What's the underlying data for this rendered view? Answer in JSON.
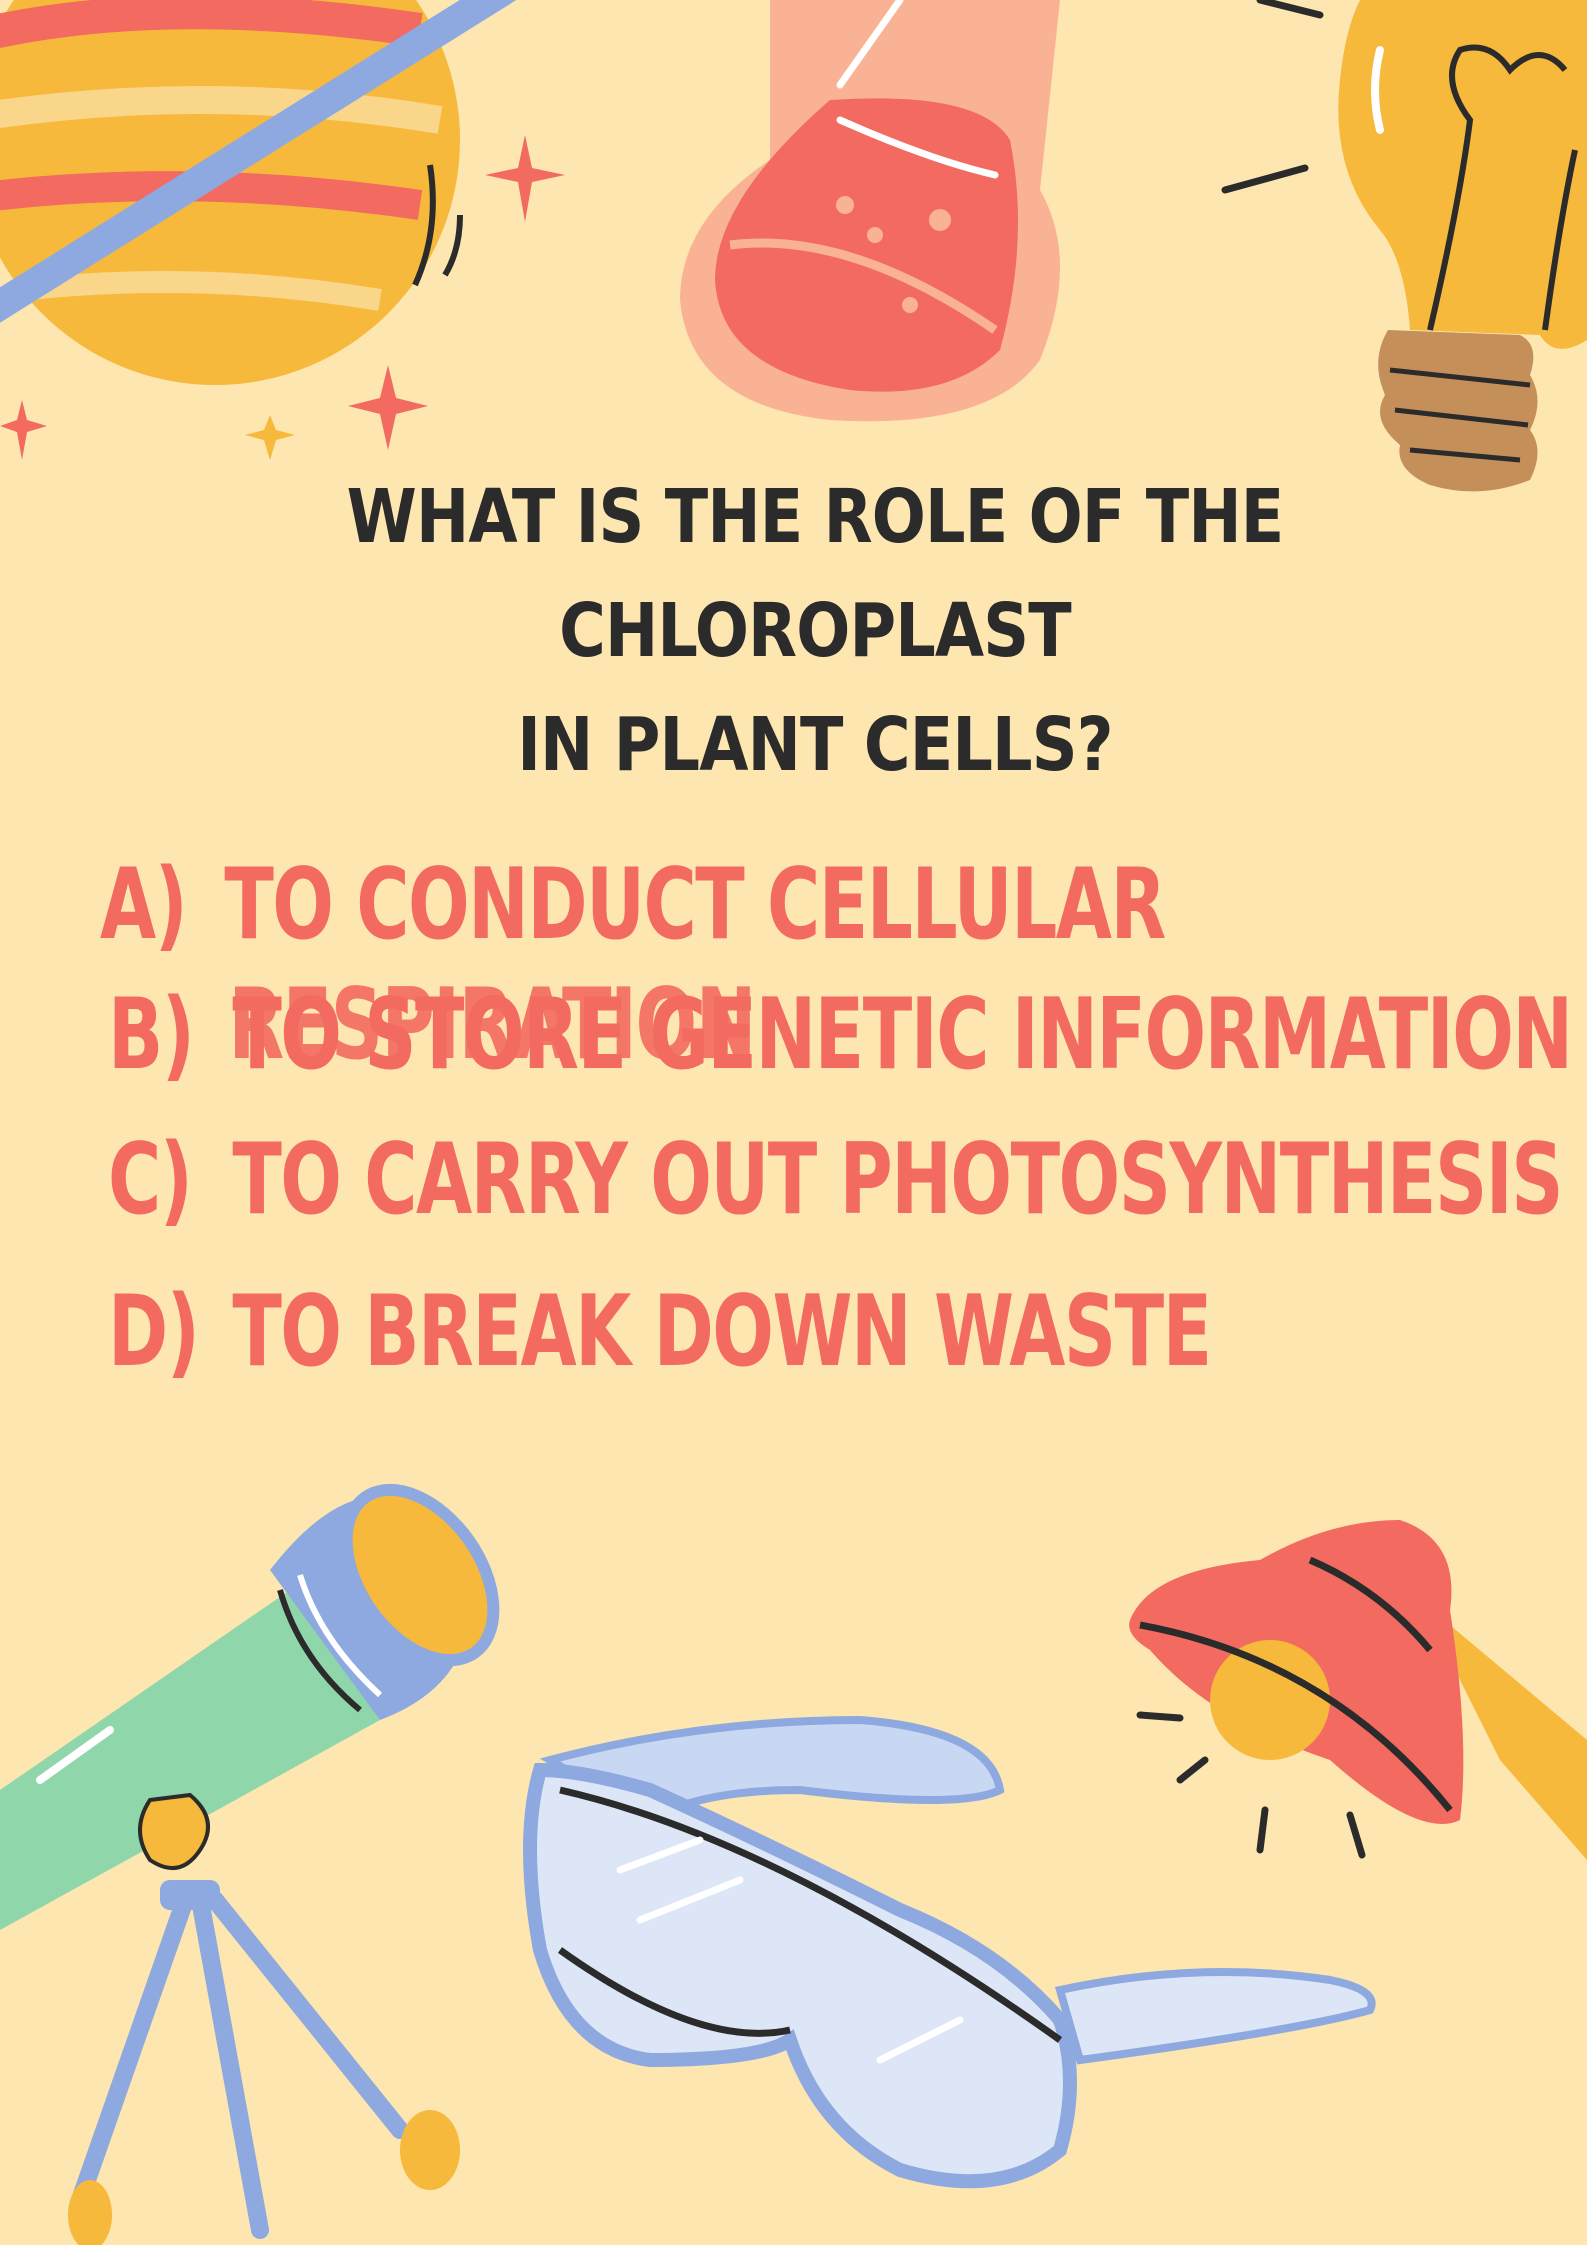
{
  "question": {
    "line1": "WHAT IS THE ROLE OF THE CHLOROPLAST",
    "line2": "IN PLANT CELLS?"
  },
  "options": [
    {
      "letter": "A)",
      "text": "TO CONDUCT CELLULAR",
      "text2": "RESPIRATION"
    },
    {
      "letter": "B)",
      "text": "TO STORE GENETIC INFORMATION"
    },
    {
      "letter": "C)",
      "text": "TO CARRY OUT PHOTOSYNTHESIS"
    },
    {
      "letter": "D)",
      "text": "TO BREAK DOWN WASTE"
    }
  ],
  "colors": {
    "background": "#FDE6B0",
    "question_text": "#2B2B2B",
    "option_text": "#F26A60"
  },
  "decorations": [
    "planet",
    "flask",
    "light-bulb",
    "telescope",
    "safety-goggles",
    "desk-lamp",
    "sparkles"
  ]
}
